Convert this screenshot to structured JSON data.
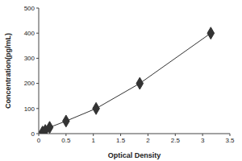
{
  "chart_data": {
    "type": "line",
    "x_label": "Optical Density",
    "y_label": "Concentration(pg/mL)",
    "x": [
      0.07,
      0.12,
      0.2,
      0.5,
      1.05,
      1.85,
      3.15
    ],
    "values": [
      6.25,
      12.5,
      25,
      50,
      100,
      200,
      400
    ],
    "color": "#333333",
    "marker": "diamond",
    "xlim": [
      0,
      3.5
    ],
    "xticks": [
      0,
      0.5,
      1,
      1.5,
      2,
      2.5,
      3,
      3.5
    ],
    "ylim": [
      0,
      500
    ],
    "yticks": [
      0,
      100,
      200,
      300,
      400,
      500
    ],
    "grid": false
  }
}
